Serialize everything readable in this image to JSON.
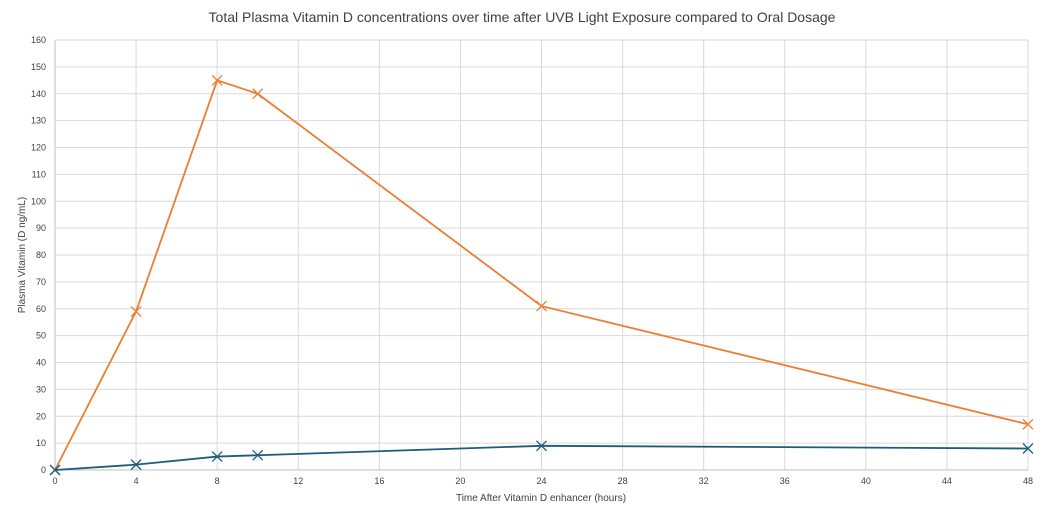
{
  "chart_data": {
    "type": "line",
    "title": "Total Plasma Vitamin D concentrations over time after UVB Light Exposure compared to Oral Dosage",
    "xlabel": "Time After Vitamin D enhancer  (hours)",
    "ylabel": "Plasma Vitamin (D ng/mL)",
    "xlim": [
      0,
      48
    ],
    "ylim": [
      0,
      160
    ],
    "xticks": [
      0,
      4,
      8,
      12,
      16,
      20,
      24,
      28,
      32,
      36,
      40,
      44,
      48
    ],
    "yticks": [
      0,
      10,
      20,
      30,
      40,
      50,
      60,
      70,
      80,
      90,
      100,
      110,
      120,
      130,
      140,
      150,
      160
    ],
    "grid": true,
    "legend": "none",
    "series": [
      {
        "color": "#ED7D31",
        "marker": "x",
        "x": [
          0,
          4,
          8,
          10,
          24,
          48
        ],
        "y": [
          0,
          59,
          145,
          140,
          61,
          17
        ]
      },
      {
        "color": "#1F5C7A",
        "marker": "x",
        "x": [
          0,
          4,
          8,
          10,
          24,
          48
        ],
        "y": [
          0,
          2,
          5,
          5.5,
          9,
          8
        ]
      }
    ]
  }
}
